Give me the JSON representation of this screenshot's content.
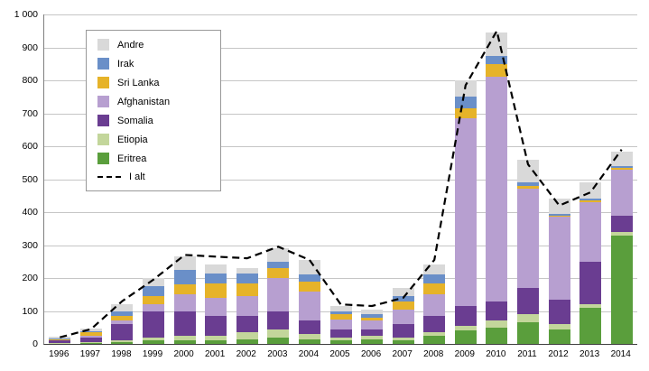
{
  "chart_data": {
    "type": "bar",
    "stacked": true,
    "title": "",
    "xlabel": "",
    "ylabel": "",
    "grid": "horizontal",
    "ylim": [
      0,
      1000
    ],
    "ytick_step": 100,
    "ytick_labels": [
      "0",
      "100",
      "200",
      "300",
      "400",
      "500",
      "600",
      "700",
      "800",
      "900",
      "1 000"
    ],
    "categories": [
      "1996",
      "1997",
      "1998",
      "1999",
      "2000",
      "2001",
      "2002",
      "2003",
      "2004",
      "2005",
      "2006",
      "2007",
      "2008",
      "2009",
      "2010",
      "2011",
      "2012",
      "2013",
      "2014"
    ],
    "series": [
      {
        "name": "Eritrea",
        "color": "#5a9e3c",
        "values": [
          0,
          2,
          5,
          10,
          10,
          10,
          15,
          20,
          15,
          10,
          15,
          10,
          25,
          40,
          50,
          65,
          45,
          110,
          330
        ]
      },
      {
        "name": "Etiopia",
        "color": "#c3d69b",
        "values": [
          2,
          3,
          5,
          10,
          15,
          15,
          20,
          25,
          15,
          10,
          10,
          10,
          10,
          15,
          20,
          25,
          15,
          10,
          10
        ]
      },
      {
        "name": "Somalia",
        "color": "#6a3d91",
        "values": [
          8,
          15,
          50,
          80,
          75,
          60,
          50,
          55,
          40,
          25,
          20,
          40,
          50,
          60,
          60,
          80,
          75,
          130,
          50
        ]
      },
      {
        "name": "Afghanistan",
        "color": "#b79fd0",
        "values": [
          2,
          5,
          10,
          20,
          50,
          55,
          60,
          100,
          90,
          30,
          25,
          45,
          65,
          570,
          680,
          300,
          250,
          180,
          140
        ]
      },
      {
        "name": "Sri Lanka",
        "color": "#e6b329",
        "values": [
          2,
          10,
          15,
          25,
          30,
          45,
          40,
          30,
          30,
          15,
          10,
          25,
          35,
          30,
          40,
          10,
          5,
          5,
          5
        ]
      },
      {
        "name": "Irak",
        "color": "#6a8fc8",
        "values": [
          2,
          3,
          15,
          30,
          45,
          30,
          30,
          20,
          20,
          10,
          10,
          15,
          25,
          35,
          25,
          10,
          5,
          5,
          5
        ]
      },
      {
        "name": "Andre",
        "color": "#d9d9d9",
        "values": [
          6,
          8,
          20,
          25,
          40,
          25,
          15,
          40,
          45,
          15,
          15,
          25,
          30,
          50,
          70,
          70,
          45,
          50,
          45
        ]
      }
    ],
    "line_series": {
      "name": "I alt",
      "color": "#000000",
      "style": "dashed",
      "values": [
        20,
        45,
        130,
        195,
        270,
        265,
        260,
        295,
        255,
        120,
        115,
        140,
        255,
        785,
        950,
        545,
        420,
        460,
        590
      ]
    },
    "legend_position": "top-left-inside",
    "legend_order": [
      "Andre",
      "Irak",
      "Sri Lanka",
      "Afghanistan",
      "Somalia",
      "Etiopia",
      "Eritrea",
      "I alt"
    ]
  }
}
